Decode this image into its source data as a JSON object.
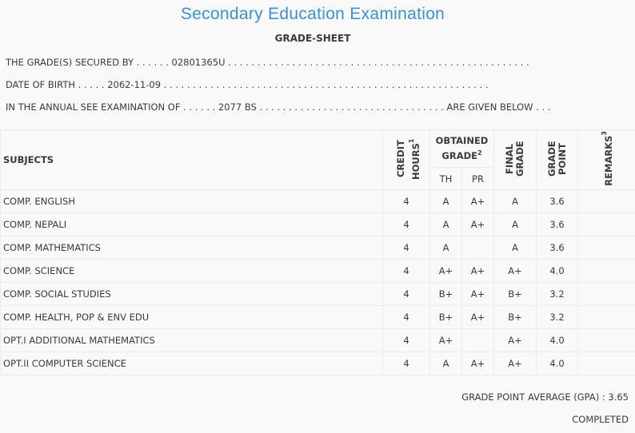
{
  "header": {
    "title": "Secondary Education Examination",
    "subtitle": "GRADE-SHEET"
  },
  "info": {
    "secured_by": "THE GRADE(S) SECURED BY . . . . . . 02801365U . . . . . . . . . . . . . . . . . . . . . . . . . . . . . . . . . . . . . . . . . . . . . . . . . . . .",
    "dob": "DATE OF BIRTH . . . . . 2062-11-09 . . . . . . . . . . . . . . . . . . . . . . . . . . . . . . . . . . . . . . . . . . . . . . . . . . . . . . . .",
    "exam": "IN THE ANNUAL SEE EXAMINATION OF . . . . . . 2077 BS . . . . . . . . . . . . . . . . . . . . . . . . . . . . . . . . ARE GIVEN BELOW . . ."
  },
  "table": {
    "headers": {
      "subjects": "SUBJECTS",
      "credit": "CREDIT HOURS",
      "credit_sup": "1",
      "obtained": "OBTAINED GRADE",
      "obtained_sup": "2",
      "th": "TH",
      "pr": "PR",
      "final": "FINAL GRADE",
      "point": "GRADE POINT",
      "remarks": "REMARKS",
      "remarks_sup": "3"
    },
    "rows": [
      {
        "subject": "COMP. ENGLISH",
        "credit": "4",
        "th": "A",
        "pr": "A+",
        "final": "A",
        "point": "3.6",
        "remarks": ""
      },
      {
        "subject": "COMP. NEPALI",
        "credit": "4",
        "th": "A",
        "pr": "A+",
        "final": "A",
        "point": "3.6",
        "remarks": ""
      },
      {
        "subject": "COMP. MATHEMATICS",
        "credit": "4",
        "th": "A",
        "pr": "",
        "final": "A",
        "point": "3.6",
        "remarks": ""
      },
      {
        "subject": "COMP. SCIENCE",
        "credit": "4",
        "th": "A+",
        "pr": "A+",
        "final": "A+",
        "point": "4.0",
        "remarks": ""
      },
      {
        "subject": "COMP. SOCIAL STUDIES",
        "credit": "4",
        "th": "B+",
        "pr": "A+",
        "final": "B+",
        "point": "3.2",
        "remarks": ""
      },
      {
        "subject": "COMP. HEALTH, POP & ENV EDU",
        "credit": "4",
        "th": "B+",
        "pr": "A+",
        "final": "B+",
        "point": "3.2",
        "remarks": ""
      },
      {
        "subject": "OPT.I ADDITIONAL MATHEMATICS",
        "credit": "4",
        "th": "A+",
        "pr": "",
        "final": "A+",
        "point": "4.0",
        "remarks": ""
      },
      {
        "subject": "OPT.II COMPUTER SCIENCE",
        "credit": "4",
        "th": "A",
        "pr": "A+",
        "final": "A+",
        "point": "4.0",
        "remarks": ""
      }
    ]
  },
  "footer": {
    "gpa": "GRADE POINT AVERAGE (GPA) : 3.65",
    "status": "COMPLETED"
  },
  "colors": {
    "title": "#3d8fd8",
    "text": "#3a3a3a",
    "background": "#f9f9f9"
  }
}
